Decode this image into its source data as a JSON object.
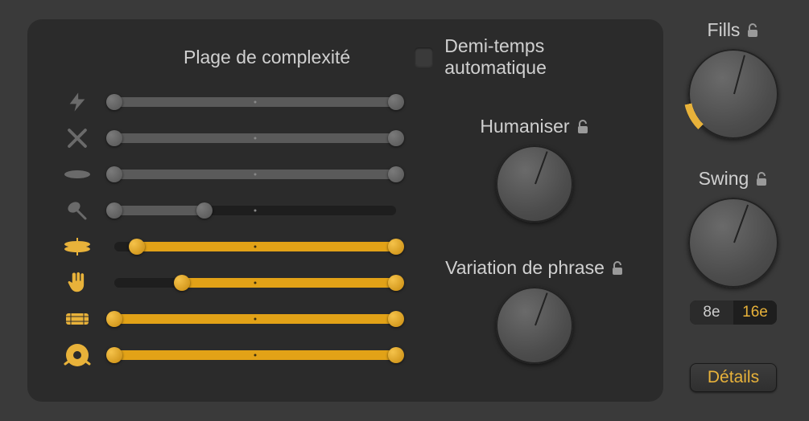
{
  "colors": {
    "accent": "#e8b23a",
    "accent_fill": "#e2a217",
    "panel_bg": "#2b2b2b",
    "app_bg": "#3a3a3a",
    "track_bg": "#1e1e1e",
    "grey_fill": "#5a5a5a",
    "text": "#d0d0d0"
  },
  "panel": {
    "title": "Plage de complexité",
    "halftime": {
      "label": "Demi-temps automatique",
      "checked": false
    },
    "rows": [
      {
        "icon": "bolt",
        "active": false,
        "start": 0,
        "end": 100
      },
      {
        "icon": "sticks",
        "active": false,
        "start": 0,
        "end": 100
      },
      {
        "icon": "cymbal",
        "active": false,
        "start": 0,
        "end": 100
      },
      {
        "icon": "shaker",
        "active": false,
        "start": 0,
        "end": 32
      },
      {
        "icon": "hihat",
        "active": true,
        "start": 8,
        "end": 100
      },
      {
        "icon": "hand",
        "active": true,
        "start": 24,
        "end": 100
      },
      {
        "icon": "snare",
        "active": true,
        "start": 0,
        "end": 100
      },
      {
        "icon": "kick",
        "active": true,
        "start": 0,
        "end": 100
      }
    ],
    "knobs": {
      "humaniser": {
        "label": "Humaniser",
        "locked": true,
        "angle": 200,
        "size": 96
      },
      "phrase": {
        "label": "Variation de phrase",
        "locked": true,
        "angle": 200,
        "size": 96
      }
    }
  },
  "right": {
    "fills": {
      "label": "Fills",
      "locked": true,
      "angle": 195,
      "size": 112,
      "arc_pct": 12
    },
    "swing": {
      "label": "Swing",
      "locked": true,
      "angle": 200,
      "size": 112,
      "options": [
        "8e",
        "16e"
      ],
      "selected": "16e"
    },
    "details_label": "Détails"
  }
}
